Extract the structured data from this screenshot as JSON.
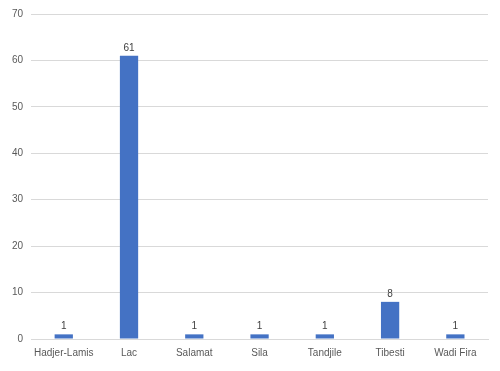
{
  "chart_data": {
    "type": "bar",
    "categories": [
      "Hadjer-Lamis",
      "Lac",
      "Salamat",
      "Sila",
      "Tandjile",
      "Tibesti",
      "Wadi Fira"
    ],
    "values": [
      1,
      61,
      1,
      1,
      1,
      8,
      1
    ],
    "color": "#4472c4",
    "ylim": [
      0,
      70
    ],
    "yticks": [
      0,
      10,
      20,
      30,
      40,
      50,
      60,
      70
    ],
    "grid": true,
    "data_labels": true
  }
}
